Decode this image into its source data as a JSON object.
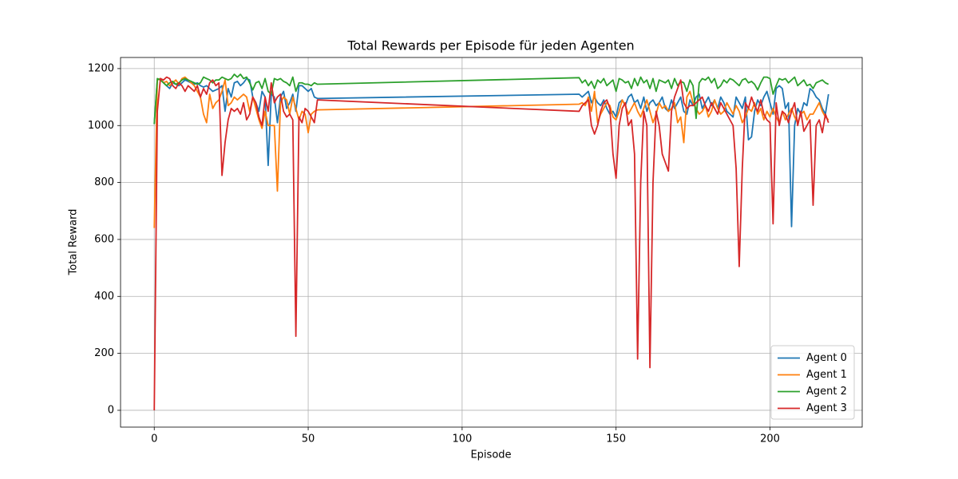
{
  "chart_data": {
    "type": "line",
    "title": "Total Rewards per Episode für jeden Agenten",
    "xlabel": "Episode",
    "ylabel": "Total Reward",
    "xlim": [
      -10.95,
      229.95
    ],
    "ylim": [
      -59,
      1239
    ],
    "xticks": [
      0,
      50,
      100,
      150,
      200
    ],
    "yticks": [
      0,
      200,
      400,
      600,
      800,
      1000,
      1200
    ],
    "grid": true,
    "legend": "lower right",
    "x": [
      0,
      1,
      2,
      3,
      4,
      5,
      6,
      7,
      8,
      9,
      10,
      11,
      12,
      13,
      14,
      15,
      16,
      17,
      18,
      19,
      20,
      21,
      22,
      23,
      24,
      25,
      26,
      27,
      28,
      29,
      30,
      31,
      32,
      33,
      34,
      35,
      36,
      37,
      38,
      39,
      40,
      41,
      42,
      43,
      44,
      45,
      46,
      47,
      48,
      49,
      50,
      51,
      52,
      53,
      138,
      139,
      140,
      141,
      142,
      143,
      144,
      145,
      146,
      147,
      148,
      149,
      150,
      151,
      152,
      153,
      154,
      155,
      156,
      157,
      158,
      159,
      160,
      161,
      162,
      163,
      164,
      165,
      166,
      167,
      168,
      169,
      170,
      171,
      172,
      173,
      174,
      175,
      176,
      177,
      178,
      179,
      180,
      181,
      182,
      183,
      184,
      185,
      186,
      187,
      188,
      189,
      190,
      191,
      192,
      193,
      194,
      195,
      196,
      197,
      198,
      199,
      200,
      201,
      202,
      203,
      204,
      205,
      206,
      207,
      208,
      209,
      210,
      211,
      212,
      213,
      214,
      215,
      216,
      217,
      218,
      219
    ],
    "series": [
      {
        "name": "Agent 0",
        "color": "#1f77b4",
        "values": [
          1005,
          1160,
          1165,
          1150,
          1140,
          1130,
          1150,
          1145,
          1140,
          1150,
          1160,
          1155,
          1150,
          1145,
          1150,
          1140,
          1135,
          1140,
          1130,
          1120,
          1125,
          1130,
          1140,
          1050,
          1130,
          1100,
          1150,
          1155,
          1140,
          1150,
          1165,
          1160,
          1100,
          1080,
          1050,
          1120,
          1100,
          860,
          1110,
          1100,
          1010,
          1100,
          1120,
          1060,
          1080,
          1110,
          1050,
          1140,
          1140,
          1130,
          1120,
          1130,
          1100,
          1095,
          1110,
          1100,
          1110,
          1120,
          1080,
          1100,
          1080,
          1070,
          1090,
          1060,
          1040,
          1050,
          1030,
          1080,
          1090,
          1070,
          1100,
          1110,
          1080,
          1090,
          1060,
          1100,
          1050,
          1080,
          1090,
          1070,
          1080,
          1100,
          1060,
          1050,
          1090,
          1060,
          1080,
          1100,
          1050,
          1040,
          1090,
          1070,
          1100,
          1110,
          1060,
          1080,
          1100,
          1070,
          1090,
          1060,
          1100,
          1080,
          1050,
          1040,
          1030,
          1100,
          1080,
          1060,
          1100,
          950,
          960,
          1050,
          1090,
          1070,
          1100,
          1120,
          1080,
          1040,
          1130,
          1140,
          1130,
          1060,
          1080,
          645,
          1000,
          1060,
          1040,
          1080,
          1070,
          1130,
          1120,
          1100,
          1090,
          1060,
          1040,
          1110
        ]
      },
      {
        "name": "Agent 1",
        "color": "#ff7f0e",
        "values": [
          640,
          1160,
          1165,
          1150,
          1155,
          1140,
          1150,
          1160,
          1145,
          1165,
          1170,
          1160,
          1150,
          1140,
          1120,
          1100,
          1040,
          1010,
          1110,
          1060,
          1080,
          1090,
          1120,
          1160,
          1070,
          1080,
          1100,
          1090,
          1100,
          1110,
          1100,
          1050,
          1100,
          1060,
          1020,
          990,
          1050,
          1000,
          1000,
          1000,
          770,
          1080,
          1100,
          1090,
          1040,
          1100,
          1060,
          1020,
          1050,
          1040,
          975,
          1040,
          1050,
          1055,
          1075,
          1080,
          1070,
          1100,
          1050,
          1120,
          1010,
          1040,
          1060,
          1080,
          1070,
          1030,
          1020,
          1050,
          1090,
          1070,
          1040,
          1060,
          1080,
          1050,
          1030,
          1060,
          1090,
          1050,
          1010,
          1040,
          1080,
          1060,
          1070,
          1050,
          1060,
          1080,
          1010,
          1030,
          940,
          1100,
          1120,
          1080,
          1060,
          1040,
          1050,
          1070,
          1030,
          1050,
          1090,
          1060,
          1040,
          1050,
          1080,
          1060,
          1040,
          1070,
          1050,
          1010,
          1030,
          1060,
          1050,
          1080,
          1040,
          1060,
          1020,
          1050,
          1030,
          1060,
          1030,
          1010,
          1050,
          1020,
          1040,
          1060,
          1030,
          1010,
          1040,
          1050,
          1020,
          1040,
          1040,
          1060,
          1080,
          1050,
          1030,
          1020
        ]
      },
      {
        "name": "Agent 2",
        "color": "#2ca02c",
        "values": [
          1005,
          1165,
          1160,
          1150,
          1140,
          1150,
          1155,
          1145,
          1150,
          1160,
          1165,
          1160,
          1155,
          1150,
          1145,
          1150,
          1170,
          1165,
          1160,
          1150,
          1160,
          1160,
          1170,
          1165,
          1160,
          1165,
          1180,
          1170,
          1180,
          1165,
          1170,
          1150,
          1125,
          1150,
          1155,
          1130,
          1165,
          1120,
          1110,
          1165,
          1160,
          1165,
          1155,
          1150,
          1140,
          1170,
          1120,
          1150,
          1150,
          1145,
          1145,
          1140,
          1150,
          1145,
          1168,
          1150,
          1160,
          1140,
          1155,
          1130,
          1160,
          1150,
          1165,
          1140,
          1150,
          1160,
          1120,
          1165,
          1160,
          1150,
          1155,
          1130,
          1165,
          1140,
          1170,
          1150,
          1160,
          1130,
          1165,
          1120,
          1160,
          1155,
          1150,
          1160,
          1130,
          1165,
          1140,
          1155,
          1150,
          1120,
          1160,
          1140,
          1025,
          1150,
          1165,
          1160,
          1170,
          1150,
          1165,
          1130,
          1140,
          1160,
          1150,
          1165,
          1160,
          1150,
          1140,
          1160,
          1165,
          1150,
          1155,
          1145,
          1125,
          1150,
          1170,
          1170,
          1165,
          1110,
          1140,
          1165,
          1160,
          1165,
          1150,
          1160,
          1170,
          1140,
          1150,
          1160,
          1140,
          1145,
          1130,
          1150,
          1155,
          1160,
          1150,
          1145
        ]
      },
      {
        "name": "Agent 3",
        "color": "#d62728",
        "values": [
          0,
          1050,
          1165,
          1160,
          1170,
          1165,
          1140,
          1130,
          1150,
          1140,
          1120,
          1140,
          1130,
          1120,
          1140,
          1100,
          1130,
          1110,
          1150,
          1160,
          1140,
          1150,
          825,
          940,
          1020,
          1060,
          1050,
          1060,
          1040,
          1080,
          1020,
          1040,
          1100,
          1080,
          1030,
          1000,
          1100,
          1050,
          1150,
          1080,
          1100,
          1110,
          1050,
          1030,
          1040,
          1020,
          260,
          1030,
          1010,
          1060,
          1050,
          1030,
          1010,
          1090,
          1050,
          1070,
          1080,
          1090,
          1000,
          970,
          1000,
          1050,
          1080,
          1090,
          1060,
          900,
          815,
          1000,
          1060,
          1080,
          1000,
          1020,
          900,
          180,
          800,
          1050,
          1000,
          150,
          800,
          1050,
          1000,
          900,
          870,
          840,
          1050,
          1100,
          1130,
          1160,
          1080,
          1060,
          1070,
          1070,
          1080,
          1090,
          1100,
          1070,
          1050,
          1080,
          1060,
          1040,
          1080,
          1060,
          1040,
          1020,
          1000,
          850,
          505,
          850,
          1080,
          1060,
          1100,
          1070,
          1050,
          1090,
          1040,
          1020,
          1010,
          655,
          1080,
          1000,
          1050,
          1040,
          1010,
          1050,
          1080,
          1000,
          1050,
          980,
          1000,
          1020,
          720,
          1000,
          1020,
          975,
          1040,
          1010
        ]
      }
    ]
  }
}
